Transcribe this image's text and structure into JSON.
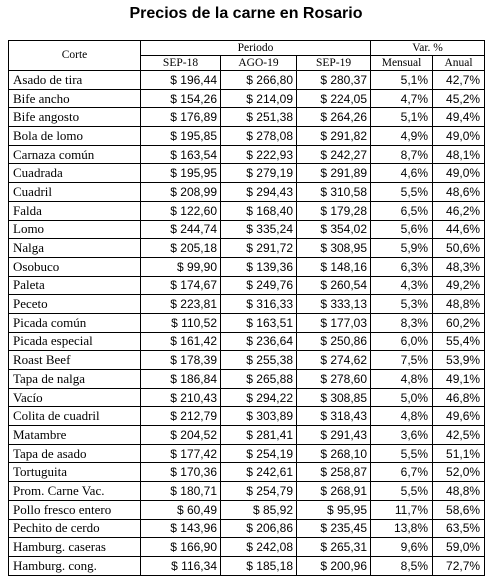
{
  "title": "Precios de la carne en Rosario",
  "headers": {
    "corte": "Corte",
    "periodo": "Periodo",
    "var": "Var. %",
    "sep18": "SEP-18",
    "ago19": "AGO-19",
    "sep19": "SEP-19",
    "mensual": "Mensual",
    "anual": "Anual"
  },
  "rows": [
    {
      "corte": "Asado de tira",
      "sep18": "$ 196,44",
      "ago19": "$ 266,80",
      "sep19": "$ 280,37",
      "mensual": "5,1%",
      "anual": "42,7%"
    },
    {
      "corte": "Bife ancho",
      "sep18": "$ 154,26",
      "ago19": "$ 214,09",
      "sep19": "$ 224,05",
      "mensual": "4,7%",
      "anual": "45,2%"
    },
    {
      "corte": "Bife angosto",
      "sep18": "$ 176,89",
      "ago19": "$ 251,38",
      "sep19": "$ 264,26",
      "mensual": "5,1%",
      "anual": "49,4%"
    },
    {
      "corte": "Bola de lomo",
      "sep18": "$ 195,85",
      "ago19": "$ 278,08",
      "sep19": "$ 291,82",
      "mensual": "4,9%",
      "anual": "49,0%"
    },
    {
      "corte": "Carnaza común",
      "sep18": "$ 163,54",
      "ago19": "$ 222,93",
      "sep19": "$ 242,27",
      "mensual": "8,7%",
      "anual": "48,1%"
    },
    {
      "corte": "Cuadrada",
      "sep18": "$ 195,95",
      "ago19": "$ 279,19",
      "sep19": "$ 291,89",
      "mensual": "4,6%",
      "anual": "49,0%"
    },
    {
      "corte": "Cuadril",
      "sep18": "$ 208,99",
      "ago19": "$ 294,43",
      "sep19": "$ 310,58",
      "mensual": "5,5%",
      "anual": "48,6%"
    },
    {
      "corte": "Falda",
      "sep18": "$ 122,60",
      "ago19": "$ 168,40",
      "sep19": "$ 179,28",
      "mensual": "6,5%",
      "anual": "46,2%"
    },
    {
      "corte": "Lomo",
      "sep18": "$ 244,74",
      "ago19": "$ 335,24",
      "sep19": "$ 354,02",
      "mensual": "5,6%",
      "anual": "44,6%"
    },
    {
      "corte": "Nalga",
      "sep18": "$ 205,18",
      "ago19": "$ 291,72",
      "sep19": "$ 308,95",
      "mensual": "5,9%",
      "anual": "50,6%"
    },
    {
      "corte": "Osobuco",
      "sep18": "$ 99,90",
      "ago19": "$ 139,36",
      "sep19": "$ 148,16",
      "mensual": "6,3%",
      "anual": "48,3%"
    },
    {
      "corte": "Paleta",
      "sep18": "$ 174,67",
      "ago19": "$ 249,76",
      "sep19": "$ 260,54",
      "mensual": "4,3%",
      "anual": "49,2%"
    },
    {
      "corte": "Peceto",
      "sep18": "$ 223,81",
      "ago19": "$ 316,33",
      "sep19": "$ 333,13",
      "mensual": "5,3%",
      "anual": "48,8%"
    },
    {
      "corte": "Picada común",
      "sep18": "$ 110,52",
      "ago19": "$ 163,51",
      "sep19": "$ 177,03",
      "mensual": "8,3%",
      "anual": "60,2%"
    },
    {
      "corte": "Picada especial",
      "sep18": "$ 161,42",
      "ago19": "$ 236,64",
      "sep19": "$ 250,86",
      "mensual": "6,0%",
      "anual": "55,4%"
    },
    {
      "corte": "Roast Beef",
      "sep18": "$ 178,39",
      "ago19": "$ 255,38",
      "sep19": "$ 274,62",
      "mensual": "7,5%",
      "anual": "53,9%"
    },
    {
      "corte": "Tapa de nalga",
      "sep18": "$ 186,84",
      "ago19": "$ 265,88",
      "sep19": "$ 278,60",
      "mensual": "4,8%",
      "anual": "49,1%"
    },
    {
      "corte": "Vacío",
      "sep18": "$ 210,43",
      "ago19": "$ 294,22",
      "sep19": "$ 308,85",
      "mensual": "5,0%",
      "anual": "46,8%"
    },
    {
      "corte": "Colita de cuadril",
      "sep18": "$ 212,79",
      "ago19": "$ 303,89",
      "sep19": "$ 318,43",
      "mensual": "4,8%",
      "anual": "49,6%"
    },
    {
      "corte": "Matambre",
      "sep18": "$ 204,52",
      "ago19": "$ 281,41",
      "sep19": "$ 291,43",
      "mensual": "3,6%",
      "anual": "42,5%"
    },
    {
      "corte": "Tapa de asado",
      "sep18": "$ 177,42",
      "ago19": "$ 254,19",
      "sep19": "$ 268,10",
      "mensual": "5,5%",
      "anual": "51,1%"
    },
    {
      "corte": "Tortuguita",
      "sep18": "$ 170,36",
      "ago19": "$ 242,61",
      "sep19": "$ 258,87",
      "mensual": "6,7%",
      "anual": "52,0%"
    },
    {
      "corte": "Prom. Carne Vac.",
      "sep18": "$ 180,71",
      "ago19": "$ 254,79",
      "sep19": "$ 268,91",
      "mensual": "5,5%",
      "anual": "48,8%"
    },
    {
      "corte": "Pollo fresco entero",
      "sep18": "$ 60,49",
      "ago19": "$ 85,92",
      "sep19": "$ 95,95",
      "mensual": "11,7%",
      "anual": "58,6%"
    },
    {
      "corte": "Pechito de cerdo",
      "sep18": "$ 143,96",
      "ago19": "$ 206,86",
      "sep19": "$ 235,45",
      "mensual": "13,8%",
      "anual": "63,5%"
    },
    {
      "corte": "Hamburg. caseras",
      "sep18": "$ 166,90",
      "ago19": "$ 242,08",
      "sep19": "$ 265,31",
      "mensual": "9,6%",
      "anual": "59,0%"
    },
    {
      "corte": "Hamburg. cong.",
      "sep18": "$ 116,34",
      "ago19": "$ 185,18",
      "sep19": "$ 200,96",
      "mensual": "8,5%",
      "anual": "72,7%"
    }
  ]
}
